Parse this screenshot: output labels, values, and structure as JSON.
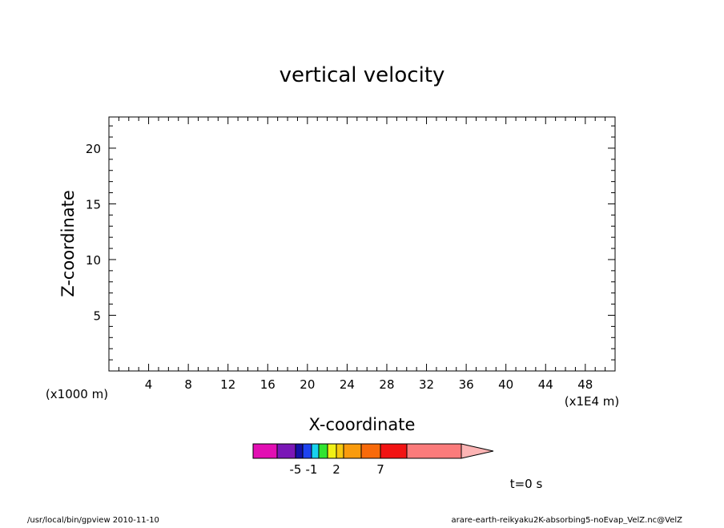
{
  "chart_data": {
    "type": "heatmap",
    "title": "vertical velocity",
    "xlabel": "X-coordinate",
    "ylabel": "Z-coordinate",
    "x_unit": "(x1E4 m)",
    "y_unit": "(x1000 m)",
    "x_ticks": [
      4,
      8,
      12,
      16,
      20,
      24,
      28,
      32,
      36,
      40,
      44,
      48
    ],
    "y_ticks": [
      5,
      10,
      15,
      20
    ],
    "xlim": [
      0,
      51
    ],
    "ylim": [
      0,
      22.8
    ],
    "grid": false,
    "values": [],
    "colorbar": {
      "colors": [
        "#e20fb3",
        "#7a17b6",
        "#1411a8",
        "#1d43f0",
        "#17d2ee",
        "#31e431",
        "#f0f016",
        "#f7c80f",
        "#f99b0d",
        "#f86a0a",
        "#f21313",
        "#fb7b7b",
        "#fcb4b4"
      ],
      "labels": [
        {
          "text": "-5",
          "index": 1
        },
        {
          "text": "-1",
          "index": 3
        },
        {
          "text": "2",
          "index": 6
        },
        {
          "text": "7",
          "index": 9
        }
      ]
    },
    "annotations": {
      "time": "t=0 s"
    }
  },
  "footer": {
    "left": "/usr/local/bin/gpview   2010-11-10",
    "right": "arare-earth-reikyaku2K-absorbing5-noEvap_VelZ.nc@VelZ"
  }
}
